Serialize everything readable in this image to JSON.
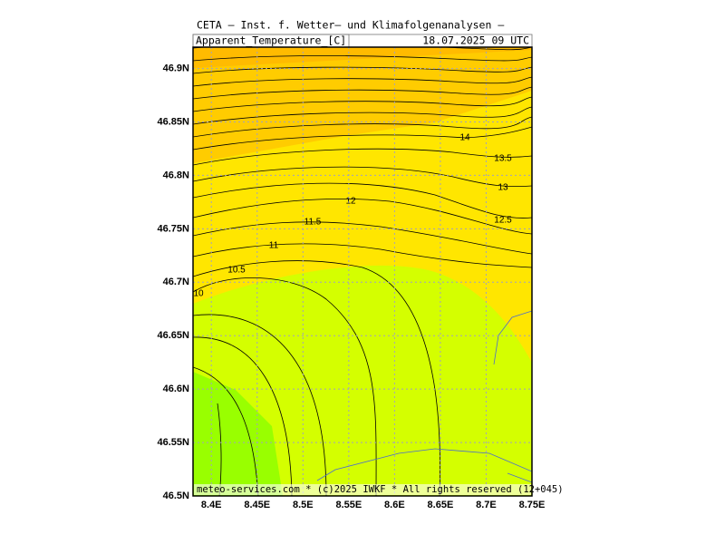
{
  "header": {
    "institute": "CETA – Inst. f. Wetter– und Klimafolgenanalysen –",
    "variable": "Apparent_Temperature_[C]",
    "valid": "18.07.2025 09 UTC"
  },
  "map": {
    "type": "contour",
    "xlim": [
      8.38,
      8.75
    ],
    "ylim": [
      46.5,
      46.92
    ],
    "xticks": [
      {
        "value": 8.4,
        "label": "8.4E"
      },
      {
        "value": 8.45,
        "label": "8.45E"
      },
      {
        "value": 8.5,
        "label": "8.5E"
      },
      {
        "value": 8.55,
        "label": "8.55E"
      },
      {
        "value": 8.6,
        "label": "8.6E"
      },
      {
        "value": 8.65,
        "label": "8.65E"
      },
      {
        "value": 8.7,
        "label": "8.7E"
      },
      {
        "value": 8.75,
        "label": "8.75E"
      }
    ],
    "yticks": [
      {
        "value": 46.5,
        "label": "46.5N"
      },
      {
        "value": 46.55,
        "label": "46.55N"
      },
      {
        "value": 46.6,
        "label": "46.6N"
      },
      {
        "value": 46.65,
        "label": "46.65N"
      },
      {
        "value": 46.7,
        "label": "46.7N"
      },
      {
        "value": 46.75,
        "label": "46.75N"
      },
      {
        "value": 46.8,
        "label": "46.8N"
      },
      {
        "value": 46.85,
        "label": "46.85N"
      },
      {
        "value": 46.9,
        "label": "46.9N"
      }
    ],
    "contour_levels": [
      10,
      10.5,
      11,
      11.5,
      12,
      12.5,
      13,
      13.5,
      14
    ],
    "grid": true
  },
  "footer": "meteo-services.com * (c)2025 IWKF * All rights reserved (12+045)"
}
